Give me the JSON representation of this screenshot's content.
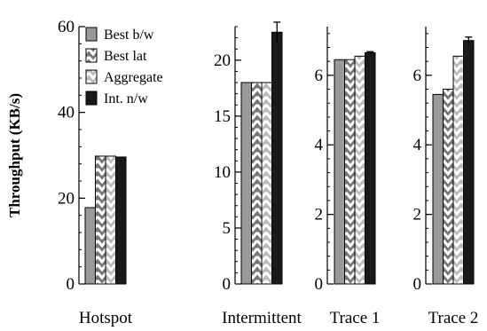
{
  "chart_data": {
    "type": "bar",
    "ylabel": "Throughput (KB/s)",
    "legend": {
      "placement": "top-left of first panel",
      "entries": [
        "Best b/w",
        "Best lat",
        "Aggregate",
        "Int. n/w"
      ]
    },
    "series": [
      {
        "name": "Best b/w",
        "color": "#999999",
        "pattern": "solid-gray"
      },
      {
        "name": "Best lat",
        "color": "#777777",
        "pattern": "chevron-dark"
      },
      {
        "name": "Aggregate",
        "color": "#bbbbbb",
        "pattern": "chevron-light"
      },
      {
        "name": "Int. n/w",
        "color": "#1a1a1a",
        "pattern": "solid-black"
      }
    ],
    "panels": [
      {
        "category": "Hotspot",
        "ylim": [
          0,
          60
        ],
        "yticks": [
          0,
          20,
          40,
          60
        ],
        "values": [
          17.8,
          29.8,
          29.8,
          29.6
        ],
        "errors": [
          0,
          0,
          0,
          0
        ]
      },
      {
        "category": "Intermittent",
        "ylim": [
          0,
          23
        ],
        "yticks": [
          0,
          5,
          10,
          15,
          20
        ],
        "values": [
          18.0,
          18.0,
          18.0,
          22.5
        ],
        "errors": [
          0,
          0,
          0,
          0.9
        ]
      },
      {
        "category": "Trace 1",
        "ylim": [
          0,
          7.4
        ],
        "yticks": [
          0,
          2,
          4,
          6
        ],
        "values": [
          6.45,
          6.45,
          6.55,
          6.65
        ],
        "errors": [
          0,
          0,
          0,
          0.03
        ]
      },
      {
        "category": "Trace 2",
        "ylim": [
          0,
          7.4
        ],
        "yticks": [
          0,
          2,
          4,
          6
        ],
        "values": [
          5.45,
          5.6,
          6.55,
          7.0
        ],
        "errors": [
          0,
          0,
          0,
          0.1
        ]
      }
    ]
  }
}
